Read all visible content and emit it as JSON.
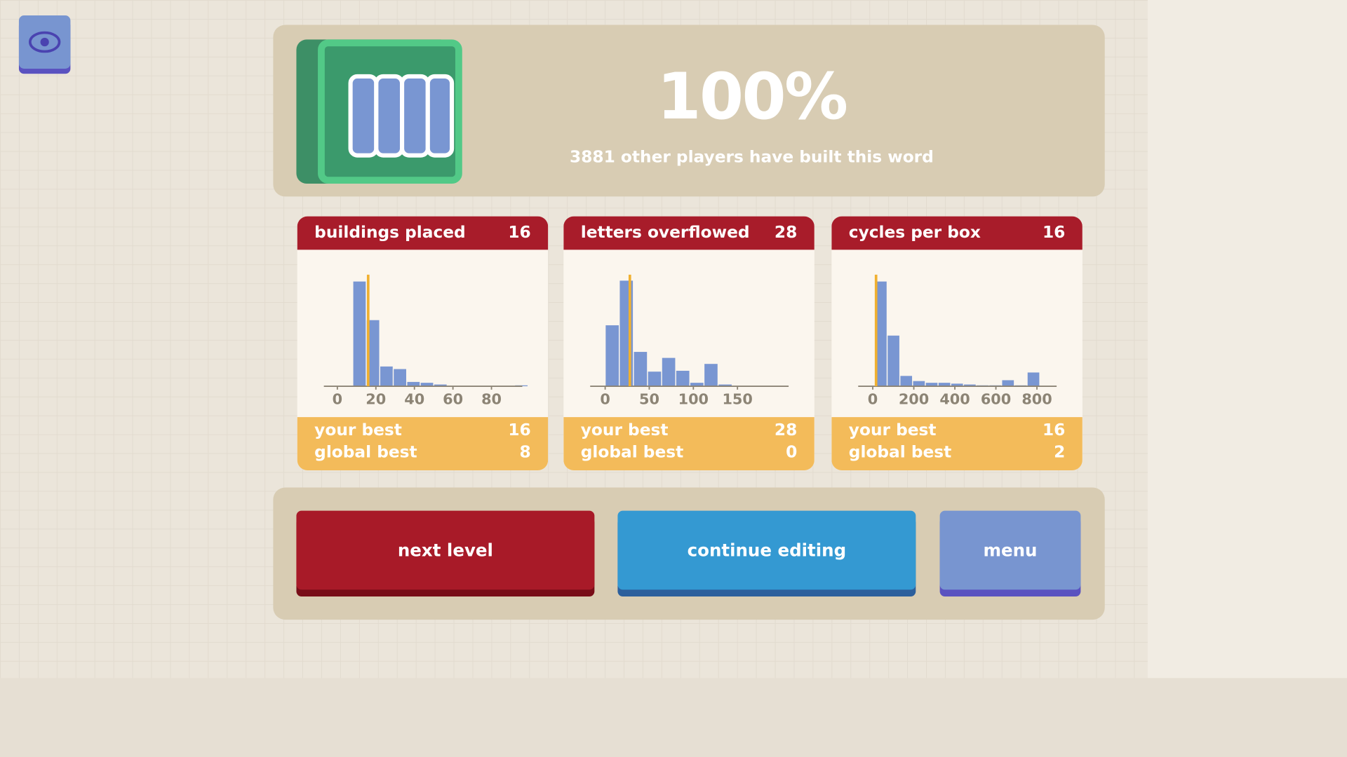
{
  "header": {
    "percent": "100%",
    "subtitle": "3881 other players have built this word"
  },
  "stats": [
    {
      "title": "buildings placed",
      "value": 16,
      "your_best_label": "your best",
      "your_best": 16,
      "global_best_label": "global best",
      "global_best": 8,
      "chart": {
        "type": "histogram",
        "bins": [
          8,
          15,
          22,
          29,
          36,
          43,
          50,
          57,
          64,
          71,
          78,
          85,
          92,
          99
        ],
        "counts": [
          122,
          77,
          23,
          20,
          5,
          4,
          2,
          0,
          0,
          0,
          0,
          0,
          1
        ],
        "color": "#7996d2",
        "marker_color": "#f0b030",
        "xlim": [
          -7,
          96
        ],
        "xticks": [
          0,
          20,
          40,
          60,
          80
        ],
        "ylim": [
          0,
          130
        ]
      }
    },
    {
      "title": "letters overflowed",
      "value": 28,
      "your_best_label": "your best",
      "your_best": 28,
      "global_best_label": "global best",
      "global_best": 0,
      "chart": {
        "type": "histogram",
        "bins": [
          0,
          16,
          32,
          48,
          64,
          80,
          96,
          112,
          128,
          144
        ],
        "counts": [
          71,
          123,
          40,
          17,
          33,
          18,
          4,
          26,
          2
        ],
        "color": "#7996d2",
        "marker_color": "#f0b030",
        "xlim": [
          -17,
          208
        ],
        "xticks": [
          0,
          50,
          100,
          150
        ],
        "ylim": [
          0,
          130
        ]
      }
    },
    {
      "title": "cycles per box",
      "value": 16,
      "your_best_label": "your best",
      "your_best": 16,
      "global_best_label": "global best",
      "global_best": 2,
      "chart": {
        "type": "histogram",
        "bins": [
          8,
          70,
          132,
          194,
          256,
          318,
          380,
          442,
          504,
          566,
          628,
          690,
          752,
          814
        ],
        "counts": [
          122,
          59,
          12,
          6,
          4,
          4,
          3,
          2,
          1,
          1,
          7,
          1,
          16
        ],
        "color": "#7996d2",
        "marker_color": "#f0b030",
        "xlim": [
          -71,
          896
        ],
        "xticks": [
          0,
          200,
          400,
          600,
          800
        ],
        "ylim": [
          0,
          130
        ]
      }
    }
  ],
  "buttons": [
    "next level",
    "continue editing",
    "menu"
  ]
}
